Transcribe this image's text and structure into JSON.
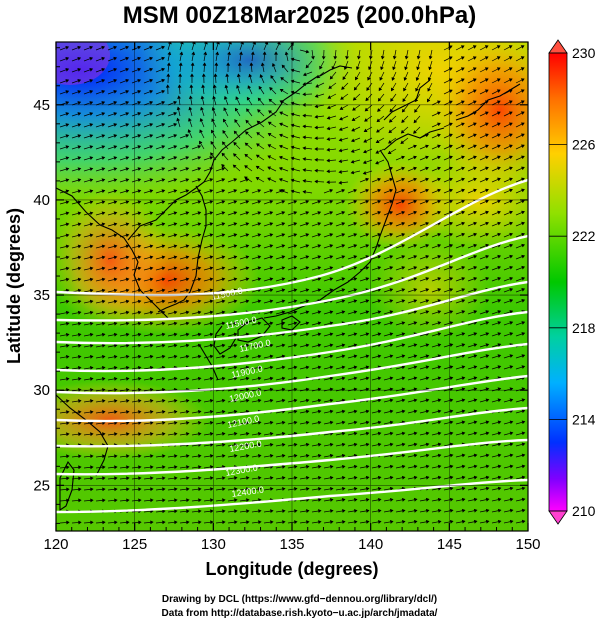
{
  "title": "MSM 00Z18Mar2025 (200.0hPa)",
  "x_axis": {
    "label": "Longitude (degrees)",
    "ticks": [
      "120",
      "125",
      "130",
      "135",
      "140",
      "145",
      "150"
    ]
  },
  "y_axis": {
    "label": "Latitude  (degrees)",
    "ticks": [
      "25",
      "30",
      "35",
      "40",
      "45"
    ]
  },
  "colorbar": {
    "ticks": [
      "230",
      "226",
      "222",
      "218",
      "214",
      "210"
    ]
  },
  "contour_labels": [
    "11500.0",
    "11500.0",
    "11700.0",
    "11900.0",
    "12000.0",
    "12100.0",
    "12200.0",
    "12300.0",
    "12400.0"
  ],
  "credits": {
    "line1": "Drawing by DCL (https://www.gfd−dennou.org/library/dcl/)",
    "line2": "Data from http://database.rish.kyoto−u.ac.jp/arch/jmadata/"
  }
}
